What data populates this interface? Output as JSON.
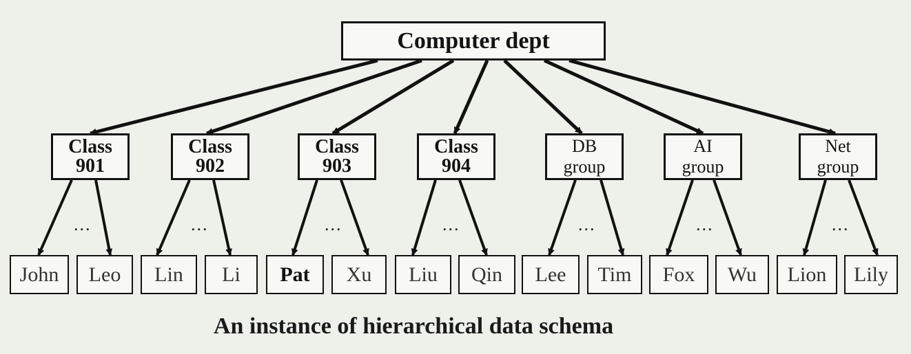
{
  "root": {
    "label": "Computer dept"
  },
  "groups": [
    {
      "line1": "Class",
      "line2": "901",
      "style": "class",
      "ellipsis": "...",
      "leaves": [
        {
          "label": "John"
        },
        {
          "label": "Leo"
        }
      ]
    },
    {
      "line1": "Class",
      "line2": "902",
      "style": "class",
      "ellipsis": "...",
      "leaves": [
        {
          "label": "Lin"
        },
        {
          "label": "Li"
        }
      ]
    },
    {
      "line1": "Class",
      "line2": "903",
      "style": "class",
      "ellipsis": "...",
      "leaves": [
        {
          "label": "Pat",
          "bold": true
        },
        {
          "label": "Xu"
        }
      ]
    },
    {
      "line1": "Class",
      "line2": "904",
      "style": "class",
      "ellipsis": "...",
      "leaves": [
        {
          "label": "Liu"
        },
        {
          "label": "Qin"
        }
      ]
    },
    {
      "line1": "DB",
      "line2": "group",
      "style": "group",
      "ellipsis": "...",
      "leaves": [
        {
          "label": "Lee"
        },
        {
          "label": "Tim"
        }
      ]
    },
    {
      "line1": "AI",
      "line2": "group",
      "style": "group",
      "ellipsis": "...",
      "leaves": [
        {
          "label": "Fox"
        },
        {
          "label": "Wu"
        }
      ]
    },
    {
      "line1": "Net",
      "line2": "group",
      "style": "group",
      "ellipsis": "...",
      "leaves": [
        {
          "label": "Lion"
        },
        {
          "label": "Lily"
        }
      ]
    }
  ],
  "caption": "An instance of hierarchical data schema",
  "colors": {
    "background": "#eef0ea",
    "box_fill": "#f8f9f5",
    "stroke": "#111111"
  }
}
